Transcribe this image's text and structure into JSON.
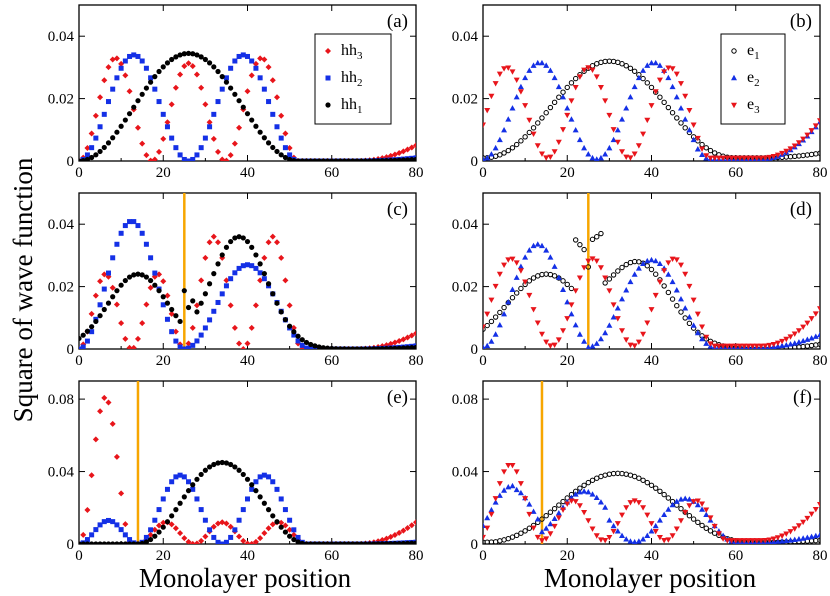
{
  "chart_data": {
    "type": "scatter",
    "ylabel": "Square of wave function",
    "xlabel": "Monolayer position",
    "xlim": [
      0,
      80
    ],
    "xticks": [
      0,
      20,
      40,
      60,
      80
    ],
    "colors": {
      "red": "#e8151b",
      "blue": "#1430e6",
      "black": "#000000",
      "orange": "#f7a600"
    },
    "panels": [
      {
        "label": "(a)",
        "ylim": [
          0,
          0.05
        ],
        "yticks": [
          "0",
          "0.02",
          "0.04"
        ],
        "ytick_values": [
          0,
          0.02,
          0.04
        ],
        "interface": null,
        "legend": [
          {
            "base": "hh",
            "sub": "3",
            "marker": "diamond",
            "color": "red"
          },
          {
            "base": "hh",
            "sub": "2",
            "marker": "square",
            "color": "blue"
          },
          {
            "base": "hh",
            "sub": "1",
            "marker": "circle",
            "color": "black"
          }
        ],
        "series": [
          {
            "name": "hh3",
            "marker": "diamond",
            "color": "red",
            "kind": "hh3",
            "amp": 0.033
          },
          {
            "name": "hh2",
            "marker": "square",
            "color": "blue",
            "kind": "hh2",
            "amp": 0.034
          },
          {
            "name": "hh1",
            "marker": "circle",
            "color": "black",
            "kind": "hh1",
            "amp": 0.0345
          }
        ]
      },
      {
        "label": "(b)",
        "ylim": [
          0,
          0.05
        ],
        "yticks": [
          "0",
          "0.02",
          "0.04"
        ],
        "ytick_values": [
          0,
          0.02,
          0.04
        ],
        "interface": null,
        "legend": [
          {
            "base": "e",
            "sub": "1",
            "marker": "open-circle",
            "color": "black"
          },
          {
            "base": "e",
            "sub": "2",
            "marker": "triangle-up",
            "color": "blue"
          },
          {
            "base": "e",
            "sub": "3",
            "marker": "triangle-down",
            "color": "red"
          }
        ],
        "series": [
          {
            "name": "e1",
            "marker": "open-circle",
            "color": "black",
            "kind": "e1",
            "amp": 0.031
          },
          {
            "name": "e2",
            "marker": "triangle-up",
            "color": "blue",
            "kind": "e2",
            "amp": 0.031
          },
          {
            "name": "e3",
            "marker": "triangle-down",
            "color": "red",
            "kind": "e3",
            "amp": 0.029
          }
        ]
      },
      {
        "label": "(c)",
        "ylim": [
          0,
          0.05
        ],
        "yticks": [
          "0",
          "0.02",
          "0.04"
        ],
        "ytick_values": [
          0,
          0.02,
          0.04
        ],
        "interface": 25,
        "legend": [],
        "series": [
          {
            "name": "hh3",
            "marker": "diamond",
            "color": "red",
            "kind": "hh3c"
          },
          {
            "name": "hh2",
            "marker": "square",
            "color": "blue",
            "kind": "hh2c"
          },
          {
            "name": "hh1",
            "marker": "circle",
            "color": "black",
            "kind": "hh1c"
          }
        ]
      },
      {
        "label": "(d)",
        "ylim": [
          0,
          0.05
        ],
        "yticks": [
          "0",
          "0.02",
          "0.04"
        ],
        "ytick_values": [
          0,
          0.02,
          0.04
        ],
        "interface": 25,
        "legend": [],
        "series": [
          {
            "name": "e1",
            "marker": "open-circle",
            "color": "black",
            "kind": "e1d"
          },
          {
            "name": "e2",
            "marker": "triangle-up",
            "color": "blue",
            "kind": "e2d"
          },
          {
            "name": "e3",
            "marker": "triangle-down",
            "color": "red",
            "kind": "e3d"
          }
        ]
      },
      {
        "label": "(e)",
        "ylim": [
          0,
          0.09
        ],
        "yticks": [
          "0",
          "0.04",
          "0.08"
        ],
        "ytick_values": [
          0,
          0.04,
          0.08
        ],
        "interface": 14,
        "legend": [],
        "series": [
          {
            "name": "hh3",
            "marker": "diamond",
            "color": "red",
            "kind": "hh3e"
          },
          {
            "name": "hh2",
            "marker": "square",
            "color": "blue",
            "kind": "hh2e"
          },
          {
            "name": "hh1",
            "marker": "circle",
            "color": "black",
            "kind": "hh1e"
          }
        ]
      },
      {
        "label": "(f)",
        "ylim": [
          0,
          0.09
        ],
        "yticks": [
          "0",
          "0.04",
          "0.08"
        ],
        "ytick_values": [
          0,
          0.04,
          0.08
        ],
        "interface": 14,
        "legend": [],
        "series": [
          {
            "name": "e1",
            "marker": "open-circle",
            "color": "black",
            "kind": "e1f"
          },
          {
            "name": "e2",
            "marker": "triangle-up",
            "color": "blue",
            "kind": "e2f"
          },
          {
            "name": "e3",
            "marker": "triangle-down",
            "color": "red",
            "kind": "e3f"
          }
        ]
      }
    ]
  }
}
